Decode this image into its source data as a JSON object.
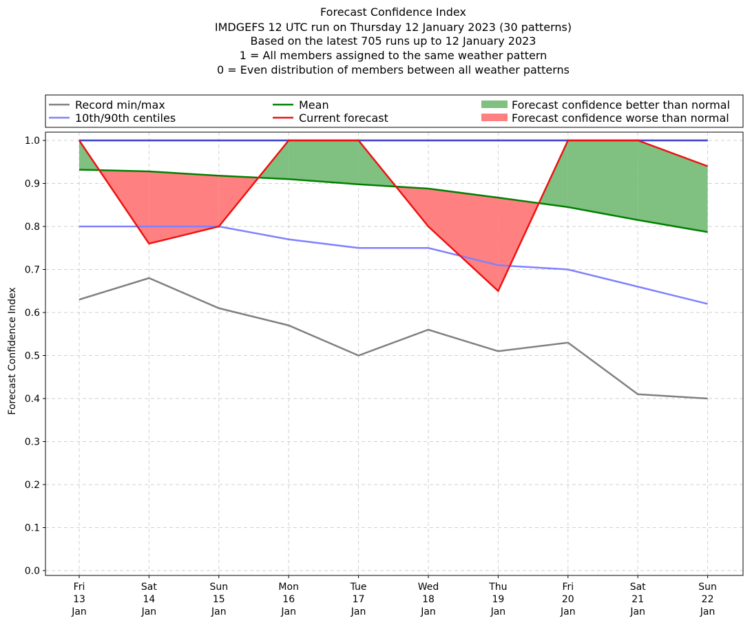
{
  "chart_data": {
    "type": "line",
    "title_lines": [
      "Forecast Confidence Index",
      "IMDGEFS 12 UTC run on Thursday 12 January 2023 (30 patterns)",
      "Based on the latest 705 runs up to 12 January 2023",
      "1 = All members assigned to the same weather pattern",
      "0 = Even distribution of members between all weather patterns"
    ],
    "ylabel": "Forecast Confidence Index",
    "ylim": [
      0.0,
      1.0
    ],
    "yticks": [
      "0.0",
      "0.1",
      "0.2",
      "0.3",
      "0.4",
      "0.5",
      "0.6",
      "0.7",
      "0.8",
      "0.9",
      "1.0"
    ],
    "grid": true,
    "categories": [
      [
        "Fri",
        "13",
        "Jan"
      ],
      [
        "Sat",
        "14",
        "Jan"
      ],
      [
        "Sun",
        "15",
        "Jan"
      ],
      [
        "Mon",
        "16",
        "Jan"
      ],
      [
        "Tue",
        "17",
        "Jan"
      ],
      [
        "Wed",
        "18",
        "Jan"
      ],
      [
        "Thu",
        "19",
        "Jan"
      ],
      [
        "Fri",
        "20",
        "Jan"
      ],
      [
        "Sat",
        "21",
        "Jan"
      ],
      [
        "Sun",
        "22",
        "Jan"
      ]
    ],
    "series": [
      {
        "key": "record_min",
        "values": [
          0.63,
          0.68,
          0.61,
          0.57,
          0.5,
          0.56,
          0.51,
          0.53,
          0.41,
          0.4
        ],
        "color": "#808080"
      },
      {
        "key": "record_max",
        "values": [
          1.0,
          1.0,
          1.0,
          1.0,
          1.0,
          1.0,
          1.0,
          1.0,
          1.0,
          1.0
        ],
        "color": "#808080"
      },
      {
        "key": "p10",
        "values": [
          0.8,
          0.8,
          0.8,
          0.77,
          0.75,
          0.75,
          0.71,
          0.7,
          0.66,
          0.62
        ],
        "color": "#8080ff"
      },
      {
        "key": "p90",
        "values": [
          1.0,
          1.0,
          1.0,
          1.0,
          1.0,
          1.0,
          1.0,
          1.0,
          1.0,
          1.0
        ],
        "color": "#4444cc"
      },
      {
        "key": "mean",
        "values": [
          0.932,
          0.928,
          0.918,
          0.91,
          0.898,
          0.888,
          0.867,
          0.845,
          0.815,
          0.787
        ],
        "color": "#008000"
      },
      {
        "key": "current",
        "values": [
          1.0,
          0.76,
          0.8,
          1.0,
          1.0,
          0.8,
          0.65,
          1.0,
          1.0,
          0.94
        ],
        "color": "#ee1111"
      }
    ],
    "fill_better_color": "#80c080",
    "fill_worse_color": "#ff8080",
    "legend": {
      "placement": "top",
      "entries": [
        {
          "label": "Record min/max",
          "color": "#808080",
          "kind": "line"
        },
        {
          "label": "10th/90th centiles",
          "color": "#8080ff",
          "kind": "line"
        },
        {
          "label": "Mean",
          "color": "#008000",
          "kind": "line"
        },
        {
          "label": "Current forecast",
          "color": "#ee1111",
          "kind": "line"
        },
        {
          "label": "Forecast confidence better than normal",
          "color": "#80c080",
          "kind": "patch"
        },
        {
          "label": "Forecast confidence worse than normal",
          "color": "#ff8080",
          "kind": "patch"
        }
      ]
    }
  }
}
